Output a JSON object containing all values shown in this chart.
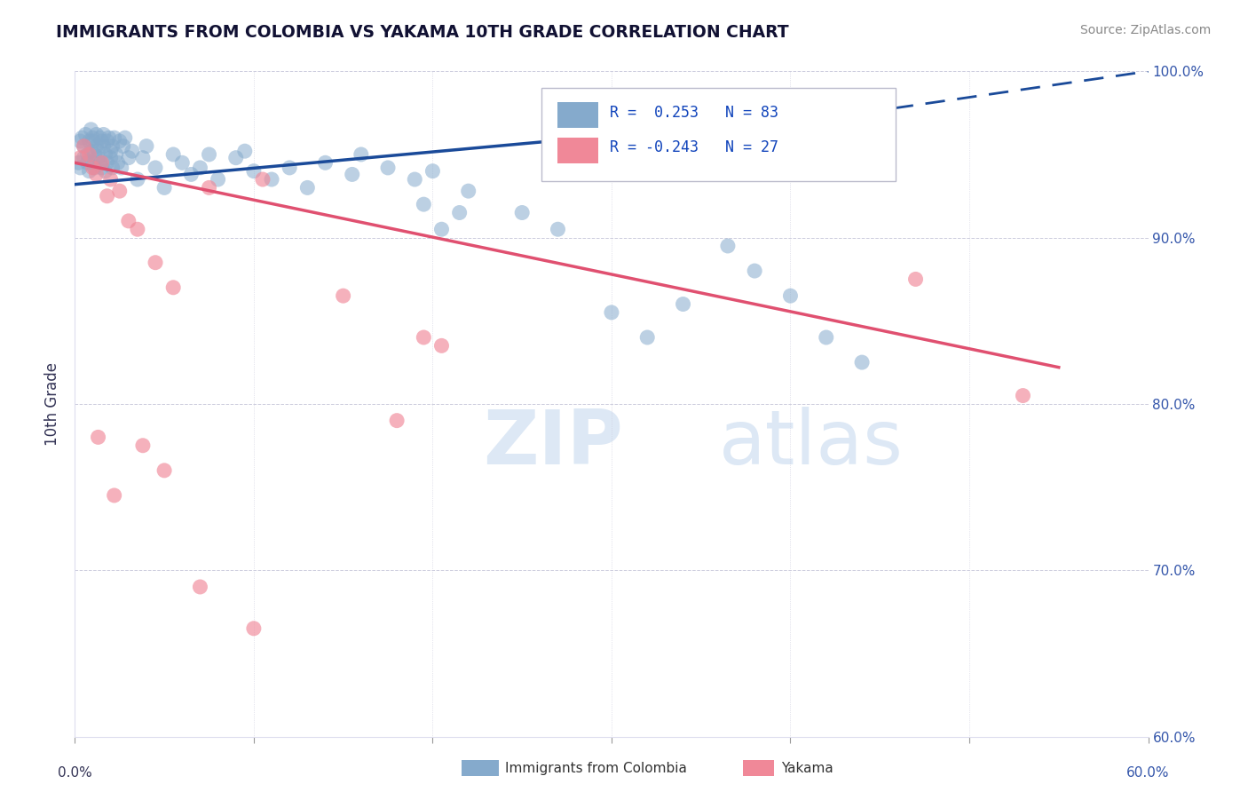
{
  "title": "IMMIGRANTS FROM COLOMBIA VS YAKAMA 10TH GRADE CORRELATION CHART",
  "source": "Source: ZipAtlas.com",
  "ylabel": "10th Grade",
  "xlim": [
    0.0,
    60.0
  ],
  "ylim": [
    60.0,
    100.0
  ],
  "yticks": [
    60.0,
    70.0,
    80.0,
    90.0,
    100.0
  ],
  "blue_R": 0.253,
  "blue_N": 83,
  "pink_R": -0.243,
  "pink_N": 27,
  "blue_color": "#85AACC",
  "pink_color": "#F08898",
  "blue_line_color": "#1A4A99",
  "pink_line_color": "#E05070",
  "watermark_color": "#DDE8F5",
  "legend_label_blue": "Immigrants from Colombia",
  "legend_label_pink": "Yakama",
  "blue_x": [
    0.2,
    0.3,
    0.3,
    0.4,
    0.5,
    0.5,
    0.6,
    0.7,
    0.7,
    0.8,
    0.8,
    0.9,
    0.9,
    1.0,
    1.0,
    1.0,
    1.1,
    1.1,
    1.2,
    1.2,
    1.3,
    1.3,
    1.4,
    1.4,
    1.5,
    1.5,
    1.6,
    1.6,
    1.7,
    1.7,
    1.8,
    1.8,
    1.9,
    2.0,
    2.0,
    2.1,
    2.1,
    2.2,
    2.3,
    2.4,
    2.5,
    2.6,
    2.7,
    2.8,
    3.0,
    3.2,
    3.5,
    3.8,
    4.0,
    4.5,
    5.0,
    5.5,
    6.0,
    6.5,
    7.0,
    7.5,
    8.0,
    9.0,
    9.5,
    10.0,
    11.0,
    12.0,
    13.0,
    14.0,
    15.5,
    16.0,
    17.5,
    19.0,
    20.0,
    22.0,
    25.0,
    27.0,
    30.0,
    32.0,
    34.0,
    36.5,
    38.0,
    40.0,
    42.0,
    44.0,
    19.5,
    20.5,
    21.5
  ],
  "blue_y": [
    94.5,
    95.8,
    94.2,
    96.0,
    95.5,
    94.8,
    96.2,
    95.0,
    94.5,
    95.8,
    94.0,
    96.5,
    95.2,
    95.8,
    94.5,
    96.0,
    95.0,
    94.2,
    96.2,
    95.5,
    94.8,
    95.2,
    96.0,
    94.5,
    95.8,
    94.2,
    95.5,
    96.2,
    94.0,
    95.0,
    95.8,
    94.5,
    96.0,
    95.2,
    94.8,
    95.5,
    94.2,
    96.0,
    95.0,
    94.5,
    95.8,
    94.2,
    95.5,
    96.0,
    94.8,
    95.2,
    93.5,
    94.8,
    95.5,
    94.2,
    93.0,
    95.0,
    94.5,
    93.8,
    94.2,
    95.0,
    93.5,
    94.8,
    95.2,
    94.0,
    93.5,
    94.2,
    93.0,
    94.5,
    93.8,
    95.0,
    94.2,
    93.5,
    94.0,
    92.8,
    91.5,
    90.5,
    85.5,
    84.0,
    86.0,
    89.5,
    88.0,
    86.5,
    84.0,
    82.5,
    92.0,
    90.5,
    91.5
  ],
  "pink_x": [
    0.3,
    0.5,
    0.8,
    1.0,
    1.2,
    1.5,
    1.8,
    2.0,
    2.5,
    3.0,
    3.5,
    4.5,
    5.5,
    7.5,
    10.5,
    15.0,
    18.0,
    19.5,
    20.5,
    47.0,
    53.0,
    1.3,
    2.2,
    3.8,
    5.0,
    7.0,
    10.0
  ],
  "pink_y": [
    94.8,
    95.5,
    95.0,
    94.2,
    93.8,
    94.5,
    92.5,
    93.5,
    92.8,
    91.0,
    90.5,
    88.5,
    87.0,
    93.0,
    93.5,
    86.5,
    79.0,
    84.0,
    83.5,
    87.5,
    80.5,
    78.0,
    74.5,
    77.5,
    76.0,
    69.0,
    66.5
  ],
  "blue_trend_x0": 0.0,
  "blue_trend_y0": 93.2,
  "blue_trend_x1": 44.0,
  "blue_trend_y1": 97.5,
  "blue_dash_x0": 44.0,
  "blue_dash_x1": 60.0,
  "blue_dash_y0": 97.5,
  "blue_dash_y1": 100.0,
  "pink_trend_x0": 0.0,
  "pink_trend_y0": 94.5,
  "pink_trend_x1": 55.0,
  "pink_trend_y1": 82.2
}
